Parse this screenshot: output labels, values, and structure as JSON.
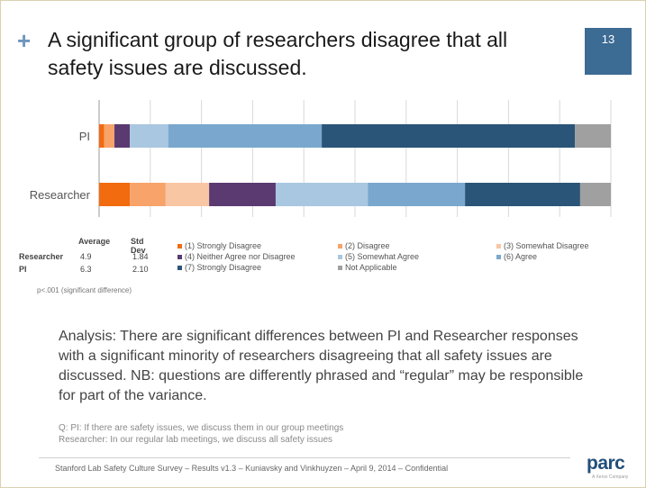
{
  "slide": {
    "title": "A significant group of researchers disagree that all safety issues are discussed.",
    "page_number": "13"
  },
  "chart_data": {
    "type": "bar",
    "orientation": "horizontal",
    "stacked": true,
    "normalized": "percent",
    "categories": [
      "PI",
      "Researcher"
    ],
    "series": [
      {
        "name": "(1) Strongly Disagree",
        "color": "#f26b0f",
        "values": [
          1,
          6
        ]
      },
      {
        "name": "(2) Disagree",
        "color": "#f7a36a",
        "values": [
          2,
          7
        ]
      },
      {
        "name": "(3) Somewhat Disagree",
        "color": "#f8c6a3",
        "values": [
          0,
          8.5
        ]
      },
      {
        "name": "(4) Neither Agree nor Disagree",
        "color": "#5a3a70",
        "values": [
          3,
          13
        ]
      },
      {
        "name": "(5) Somewhat Agree",
        "color": "#a9c7e0",
        "values": [
          7.5,
          18
        ]
      },
      {
        "name": "(6) Agree",
        "color": "#7aa7ce",
        "values": [
          30,
          19
        ]
      },
      {
        "name": "(7) Strongly Disagree",
        "color": "#2b5578",
        "values": [
          49.5,
          22.5
        ]
      },
      {
        "name": "Not Applicable",
        "color": "#a0a0a0",
        "values": [
          7,
          6
        ]
      }
    ],
    "xlim": [
      0,
      100
    ],
    "grid": true
  },
  "stats": {
    "headers": [
      "Average",
      "Std Dev"
    ],
    "rows": [
      {
        "label": "Researcher",
        "average": "4.9",
        "std_dev": "1.84"
      },
      {
        "label": "PI",
        "average": "6.3",
        "std_dev": "2.10"
      }
    ],
    "significance": "p<.001 (significant  difference)"
  },
  "analysis": "Analysis: There are significant differences between PI and Researcher responses with a significant minority of researchers disagreeing that all safety issues are discussed.  NB: questions are differently phrased and “regular” may be responsible for part of the variance.",
  "questions": {
    "pi": "Q: PI: If there are safety issues, we discuss them in our group meetings",
    "researcher": "Researcher: In our regular lab meetings, we discuss all safety issues"
  },
  "footer": "Stanford Lab Safety Culture Survey –  Results v1.3 – Kuniavsky and Vinkhuyzen – April 9, 2014 – Confidential",
  "logo": {
    "text": "parc",
    "sub": "A Xerox Company"
  }
}
